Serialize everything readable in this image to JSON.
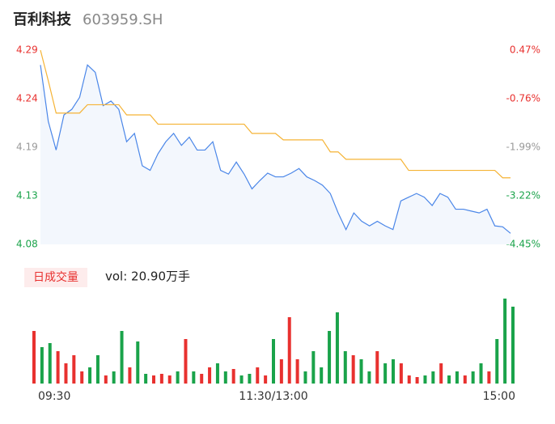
{
  "chart_data": {
    "type": "intraday",
    "title": "百利科技",
    "code": "603959.SH",
    "volume_tab": "日成交量",
    "volume_label": "vol: 20.90万手",
    "x": [
      0,
      4,
      8,
      12,
      16,
      20,
      24,
      28,
      32,
      36,
      40,
      44,
      48,
      52,
      56,
      60,
      64,
      68,
      72,
      76,
      80,
      84,
      88,
      92,
      96,
      100,
      104,
      108,
      112,
      116,
      120,
      124,
      128,
      132,
      136,
      140,
      144,
      148,
      152,
      156,
      160,
      164,
      168,
      172,
      176,
      180,
      184,
      188,
      192,
      196,
      200,
      204,
      208,
      212,
      216,
      220,
      224,
      228,
      232,
      236,
      240
    ],
    "xlim": [
      0,
      240
    ],
    "xticks": [
      {
        "value": 0,
        "label": "09:30"
      },
      {
        "value": 120,
        "label": "11:30/13:00"
      },
      {
        "value": 240,
        "label": "15:00"
      }
    ],
    "ylim": [
      4.08,
      4.29
    ],
    "yticks": [
      4.29,
      {
        "value": 4.2375,
        "label": "4.24"
      },
      {
        "value": 4.185,
        "label": "4.19"
      },
      {
        "value": 4.1325,
        "label": "4.13"
      },
      4.08
    ],
    "y2lim": [
      -4.45,
      0.47
    ],
    "y2ticks": [
      {
        "value": 0.47,
        "label": "0.47%"
      },
      {
        "value": -0.76,
        "label": "-0.76%"
      },
      {
        "value": -1.99,
        "label": "-1.99%"
      },
      {
        "value": -3.22,
        "label": "-3.22%"
      },
      {
        "value": -4.45,
        "label": "-4.45%"
      }
    ],
    "up_color": "#e8312f",
    "flat_color": "#999999",
    "down_color": "#1aa34a",
    "series": [
      {
        "color": "#4a86e8",
        "area_color": "#f3f7fd",
        "values": [
          4.274,
          4.213,
          4.182,
          4.22,
          4.226,
          4.239,
          4.274,
          4.266,
          4.23,
          4.235,
          4.226,
          4.191,
          4.2,
          4.165,
          4.16,
          4.178,
          4.191,
          4.2,
          4.187,
          4.196,
          4.182,
          4.182,
          4.191,
          4.16,
          4.156,
          4.169,
          4.156,
          4.14,
          4.149,
          4.157,
          4.153,
          4.153,
          4.157,
          4.162,
          4.153,
          4.149,
          4.144,
          4.135,
          4.114,
          4.096,
          4.114,
          4.105,
          4.1,
          4.105,
          4.1,
          4.096,
          4.127,
          4.131,
          4.135,
          4.131,
          4.122,
          4.135,
          4.131,
          4.118,
          4.118,
          4.116,
          4.114,
          4.118,
          4.1,
          4.099,
          4.092
        ]
      },
      {
        "color": "#f5b335",
        "values": [
          4.29,
          4.257,
          4.222,
          4.222,
          4.222,
          4.222,
          4.231,
          4.231,
          4.231,
          4.231,
          4.231,
          4.22,
          4.22,
          4.22,
          4.22,
          4.21,
          4.21,
          4.21,
          4.21,
          4.21,
          4.21,
          4.21,
          4.21,
          4.21,
          4.21,
          4.21,
          4.21,
          4.2,
          4.2,
          4.2,
          4.2,
          4.193,
          4.193,
          4.193,
          4.193,
          4.193,
          4.193,
          4.18,
          4.18,
          4.172,
          4.172,
          4.172,
          4.172,
          4.172,
          4.172,
          4.172,
          4.172,
          4.16,
          4.16,
          4.16,
          4.16,
          4.16,
          4.16,
          4.16,
          4.16,
          4.16,
          4.16,
          4.16,
          4.16,
          4.152,
          4.152
        ]
      }
    ],
    "volume": {
      "ylim": [
        0,
        110
      ],
      "values": [
        65,
        45,
        50,
        40,
        25,
        35,
        15,
        20,
        35,
        10,
        15,
        65,
        20,
        52,
        12,
        10,
        12,
        10,
        15,
        55,
        15,
        12,
        20,
        25,
        15,
        18,
        10,
        12,
        20,
        10,
        55,
        30,
        82,
        30,
        15,
        40,
        20,
        65,
        88,
        40,
        35,
        30,
        15,
        40,
        25,
        30,
        25,
        10,
        8,
        10,
        15,
        25,
        10,
        15,
        10,
        15,
        25,
        15,
        55,
        105,
        95
      ]
    }
  }
}
